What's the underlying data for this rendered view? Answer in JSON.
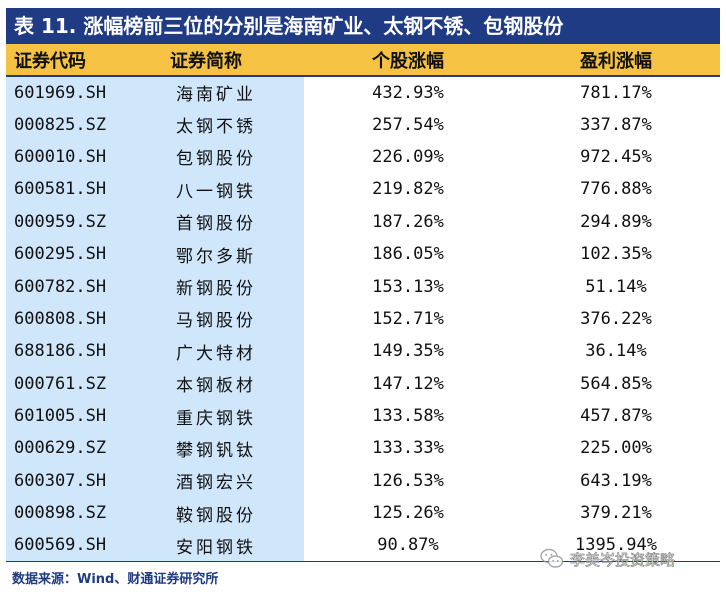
{
  "title": "表 11. 涨幅榜前三位的分别是海南矿业、太钢不锈、包钢股份",
  "headers": {
    "code": "证券代码",
    "name": "证券简称",
    "stock_gain": "个股涨幅",
    "profit_gain": "盈利涨幅"
  },
  "rows": [
    {
      "code": "601969.SH",
      "name": "海南矿业",
      "stock_gain": "432.93%",
      "profit_gain": "781.17%"
    },
    {
      "code": "000825.SZ",
      "name": "太钢不锈",
      "stock_gain": "257.54%",
      "profit_gain": "337.87%"
    },
    {
      "code": "600010.SH",
      "name": "包钢股份",
      "stock_gain": "226.09%",
      "profit_gain": "972.45%"
    },
    {
      "code": "600581.SH",
      "name": "八一钢铁",
      "stock_gain": "219.82%",
      "profit_gain": "776.88%"
    },
    {
      "code": "000959.SZ",
      "name": "首钢股份",
      "stock_gain": "187.26%",
      "profit_gain": "294.89%"
    },
    {
      "code": "600295.SH",
      "name": "鄂尔多斯",
      "stock_gain": "186.05%",
      "profit_gain": "102.35%"
    },
    {
      "code": "600782.SH",
      "name": "新钢股份",
      "stock_gain": "153.13%",
      "profit_gain": "51.14%"
    },
    {
      "code": "600808.SH",
      "name": "马钢股份",
      "stock_gain": "152.71%",
      "profit_gain": "376.22%"
    },
    {
      "code": "688186.SH",
      "name": "广大特材",
      "stock_gain": "149.35%",
      "profit_gain": "36.14%"
    },
    {
      "code": "000761.SZ",
      "name": "本钢板材",
      "stock_gain": "147.12%",
      "profit_gain": "564.85%"
    },
    {
      "code": "601005.SH",
      "name": "重庆钢铁",
      "stock_gain": "133.58%",
      "profit_gain": "457.87%"
    },
    {
      "code": "000629.SZ",
      "name": "攀钢钒钛",
      "stock_gain": "133.33%",
      "profit_gain": "225.00%"
    },
    {
      "code": "600307.SH",
      "name": "酒钢宏兴",
      "stock_gain": "126.53%",
      "profit_gain": "643.19%"
    },
    {
      "code": "000898.SZ",
      "name": "鞍钢股份",
      "stock_gain": "125.26%",
      "profit_gain": "379.21%"
    },
    {
      "code": "600569.SH",
      "name": "安阳钢铁",
      "stock_gain": "90.87%",
      "profit_gain": "1395.94%"
    }
  ],
  "source": "数据来源：Wind、财通证券研究所",
  "watermark": "李美岑投资策略",
  "watermark_icon": "wechat-icon",
  "colors": {
    "title_bg": "#1f3b84",
    "header_bg": "#f6c244",
    "highlight_col_bg": "#cfe6fb",
    "source_text": "#1f3b84"
  }
}
